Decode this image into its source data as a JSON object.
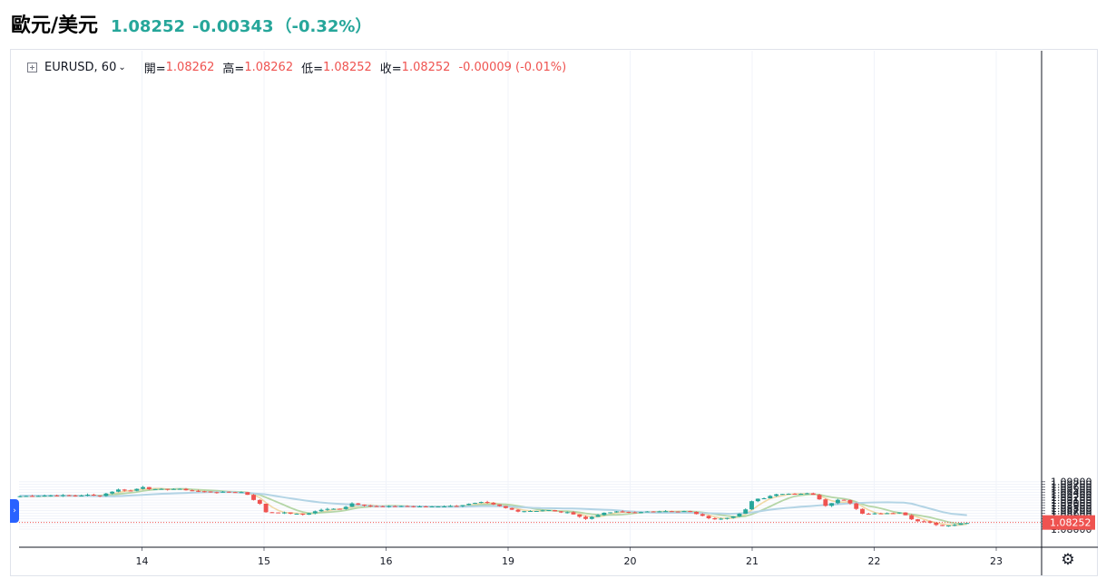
{
  "header": {
    "pair_name": "歐元/美元",
    "price": "1.08252",
    "change": "-0.00343",
    "change_pct": "（-0.32%）"
  },
  "legend": {
    "symbol": "EURUSD, 60",
    "open_label": "開=",
    "open_value": "1.08262",
    "high_label": "高=",
    "high_value": "1.08262",
    "low_label": "低=",
    "low_value": "1.08252",
    "close_label": "收=",
    "close_value": "1.08252",
    "delta": "-0.00009 (-0.01%)"
  },
  "icons": {
    "expand": "plus-box-icon",
    "chevron": "chevron-down-icon",
    "scroll": "chevron-right-icon",
    "settings": "gear-icon"
  },
  "colors": {
    "up": "#26a69a",
    "down": "#ef5350",
    "ma_fast": "#f0d9a6",
    "ma_mid": "#b5d6a7",
    "ma_slow": "#b3d4e5",
    "last_price_line": "#ef5350"
  },
  "chart_data": {
    "type": "candlestick",
    "symbol": "EURUSD",
    "interval": "60",
    "ylim": [
      1.0796,
      1.0985
    ],
    "y_ticks": [
      "1.09800",
      "1.09700",
      "1.09600",
      "1.09500",
      "1.09400",
      "1.09300",
      "1.09200",
      "1.09100",
      "1.09000",
      "1.08900",
      "1.08800",
      "1.08700",
      "1.08600",
      "1.08500",
      "1.08400",
      "1.08300",
      "1.08200",
      "1.08100",
      "1.08000"
    ],
    "x_ticks": [
      {
        "label": "14",
        "pos": 0.125
      },
      {
        "label": "15",
        "pos": 0.25
      },
      {
        "label": "16",
        "pos": 0.375
      },
      {
        "label": "19",
        "pos": 0.5
      },
      {
        "label": "20",
        "pos": 0.625
      },
      {
        "label": "21",
        "pos": 0.75
      },
      {
        "label": "22",
        "pos": 0.875
      },
      {
        "label": "23",
        "pos": 1.0
      }
    ],
    "last_price": "1.08252",
    "anchors": [
      [
        0.0,
        1.0925
      ],
      [
        0.03,
        1.0928
      ],
      [
        0.06,
        1.0927
      ],
      [
        0.07,
        1.093
      ],
      [
        0.08,
        1.0925
      ],
      [
        0.1,
        1.095
      ],
      [
        0.115,
        1.0945
      ],
      [
        0.125,
        1.0962
      ],
      [
        0.135,
        1.095
      ],
      [
        0.16,
        1.0953
      ],
      [
        0.18,
        1.0944
      ],
      [
        0.2,
        1.094
      ],
      [
        0.22,
        1.0941
      ],
      [
        0.23,
        1.094
      ],
      [
        0.24,
        1.091
      ],
      [
        0.245,
        1.09
      ],
      [
        0.25,
        1.0865
      ],
      [
        0.27,
        1.0862
      ],
      [
        0.29,
        1.0855
      ],
      [
        0.31,
        1.0875
      ],
      [
        0.33,
        1.0878
      ],
      [
        0.34,
        1.0898
      ],
      [
        0.36,
        1.0887
      ],
      [
        0.375,
        1.0885
      ],
      [
        0.39,
        1.0888
      ],
      [
        0.41,
        1.0885
      ],
      [
        0.43,
        1.0887
      ],
      [
        0.445,
        1.0887
      ],
      [
        0.455,
        1.0893
      ],
      [
        0.47,
        1.09
      ],
      [
        0.475,
        1.0903
      ],
      [
        0.48,
        1.0897
      ],
      [
        0.49,
        1.0888
      ],
      [
        0.5,
        1.0877
      ],
      [
        0.51,
        1.0868
      ],
      [
        0.53,
        1.087
      ],
      [
        0.54,
        1.0873
      ],
      [
        0.55,
        1.0865
      ],
      [
        0.56,
        1.0863
      ],
      [
        0.57,
        1.0855
      ],
      [
        0.575,
        1.0843
      ],
      [
        0.58,
        1.0838
      ],
      [
        0.59,
        1.0853
      ],
      [
        0.6,
        1.0862
      ],
      [
        0.61,
        1.0866
      ],
      [
        0.62,
        1.0865
      ],
      [
        0.63,
        1.0862
      ],
      [
        0.65,
        1.0868
      ],
      [
        0.66,
        1.087
      ],
      [
        0.67,
        1.0865
      ],
      [
        0.68,
        1.0868
      ],
      [
        0.69,
        1.0862
      ],
      [
        0.7,
        1.0848
      ],
      [
        0.71,
        1.0838
      ],
      [
        0.72,
        1.0842
      ],
      [
        0.73,
        1.0847
      ],
      [
        0.74,
        1.0862
      ],
      [
        0.745,
        1.088
      ],
      [
        0.75,
        1.091
      ],
      [
        0.755,
        1.0915
      ],
      [
        0.765,
        1.092
      ],
      [
        0.77,
        1.093
      ],
      [
        0.78,
        1.0935
      ],
      [
        0.79,
        1.0935
      ],
      [
        0.8,
        1.0935
      ],
      [
        0.81,
        1.0935
      ],
      [
        0.815,
        1.0928
      ],
      [
        0.82,
        1.091
      ],
      [
        0.825,
        1.089
      ],
      [
        0.83,
        1.0895
      ],
      [
        0.84,
        1.0918
      ],
      [
        0.85,
        1.09
      ],
      [
        0.855,
        1.0885
      ],
      [
        0.86,
        1.086
      ],
      [
        0.865,
        1.0858
      ],
      [
        0.87,
        1.086
      ],
      [
        0.88,
        1.0858
      ],
      [
        0.9,
        1.0862
      ],
      [
        0.905,
        1.086
      ],
      [
        0.91,
        1.084
      ],
      [
        0.92,
        1.083
      ],
      [
        0.93,
        1.083
      ],
      [
        0.935,
        1.082
      ],
      [
        0.94,
        1.0812
      ],
      [
        0.95,
        1.0815
      ],
      [
        0.96,
        1.0818
      ],
      [
        0.965,
        1.0825
      ],
      [
        0.97,
        1.0825
      ]
    ],
    "ma_slow_anchors": [
      [
        0.0,
        1.0927
      ],
      [
        0.05,
        1.0927
      ],
      [
        0.1,
        1.0925
      ],
      [
        0.15,
        1.0935
      ],
      [
        0.19,
        1.094
      ],
      [
        0.22,
        1.094
      ],
      [
        0.25,
        1.0933
      ],
      [
        0.28,
        1.0915
      ],
      [
        0.31,
        1.09
      ],
      [
        0.34,
        1.0893
      ],
      [
        0.37,
        1.0886
      ],
      [
        0.41,
        1.0886
      ],
      [
        0.45,
        1.0885
      ],
      [
        0.48,
        1.0888
      ],
      [
        0.5,
        1.0886
      ],
      [
        0.53,
        1.088
      ],
      [
        0.57,
        1.0878
      ],
      [
        0.61,
        1.0872
      ],
      [
        0.63,
        1.0866
      ],
      [
        0.65,
        1.0862
      ],
      [
        0.68,
        1.0862
      ],
      [
        0.71,
        1.086
      ],
      [
        0.73,
        1.0858
      ],
      [
        0.75,
        1.0863
      ],
      [
        0.77,
        1.0875
      ],
      [
        0.8,
        1.0885
      ],
      [
        0.83,
        1.0893
      ],
      [
        0.85,
        1.0898
      ],
      [
        0.87,
        1.0901
      ],
      [
        0.89,
        1.0902
      ],
      [
        0.91,
        1.09
      ],
      [
        0.93,
        1.088
      ],
      [
        0.95,
        1.086
      ],
      [
        0.97,
        1.0853
      ]
    ]
  }
}
